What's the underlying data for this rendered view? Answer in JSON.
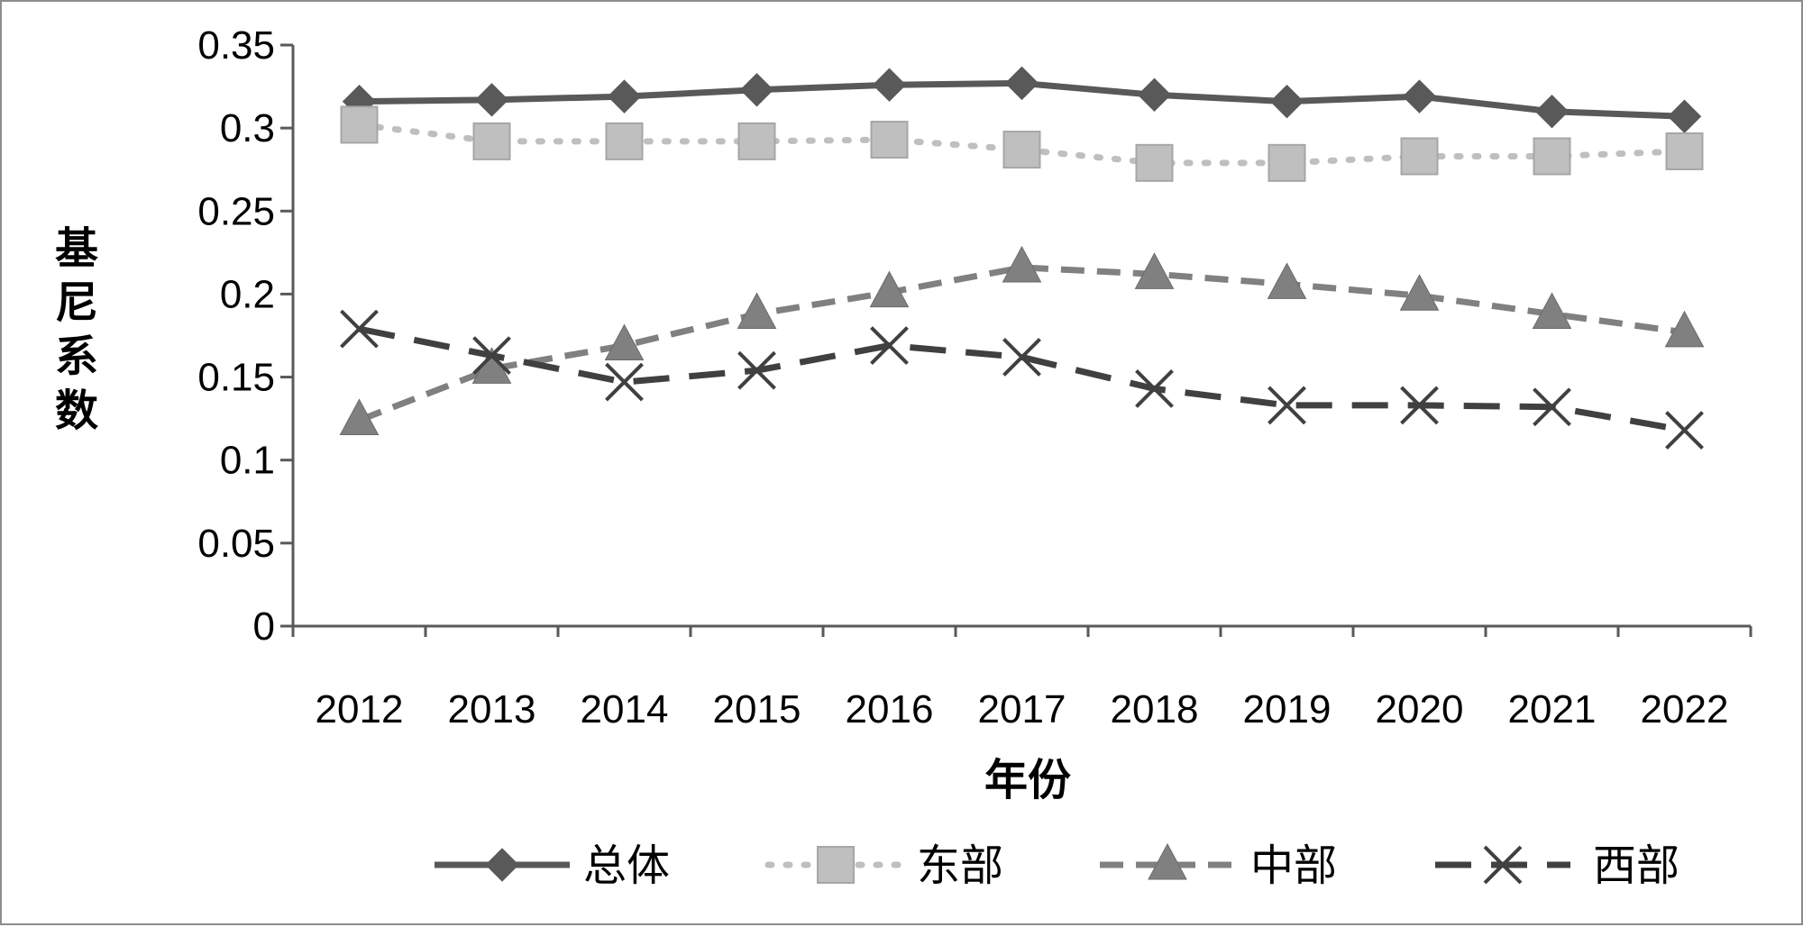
{
  "chart_data": {
    "type": "line",
    "ylabel": "基尼系数",
    "xlabel": "年份",
    "categories": [
      "2012",
      "2013",
      "2014",
      "2015",
      "2016",
      "2017",
      "2018",
      "2019",
      "2020",
      "2021",
      "2022"
    ],
    "ylim": [
      0,
      0.35
    ],
    "yticks": [
      "0",
      "0.05",
      "0.1",
      "0.15",
      "0.2",
      "0.25",
      "0.3",
      "0.35"
    ],
    "grid": false,
    "legend_position": "bottom",
    "series": [
      {
        "name": "总体",
        "values": [
          0.316,
          0.317,
          0.319,
          0.323,
          0.326,
          0.327,
          0.32,
          0.316,
          0.319,
          0.31,
          0.307
        ],
        "color": "#595959",
        "line": "solid",
        "marker": "diamond"
      },
      {
        "name": "东部",
        "values": [
          0.302,
          0.292,
          0.292,
          0.292,
          0.293,
          0.287,
          0.279,
          0.279,
          0.283,
          0.283,
          0.286
        ],
        "color": "#bfbfbf",
        "line": "dotted",
        "marker": "square"
      },
      {
        "name": "中部",
        "values": [
          0.124,
          0.155,
          0.169,
          0.188,
          0.201,
          0.216,
          0.212,
          0.206,
          0.199,
          0.188,
          0.177
        ],
        "color": "#808080",
        "line": "dashed",
        "marker": "triangle"
      },
      {
        "name": "西部",
        "values": [
          0.179,
          0.163,
          0.147,
          0.154,
          0.169,
          0.162,
          0.143,
          0.133,
          0.133,
          0.132,
          0.118
        ],
        "color": "#404040",
        "line": "longdash",
        "marker": "x"
      }
    ]
  }
}
